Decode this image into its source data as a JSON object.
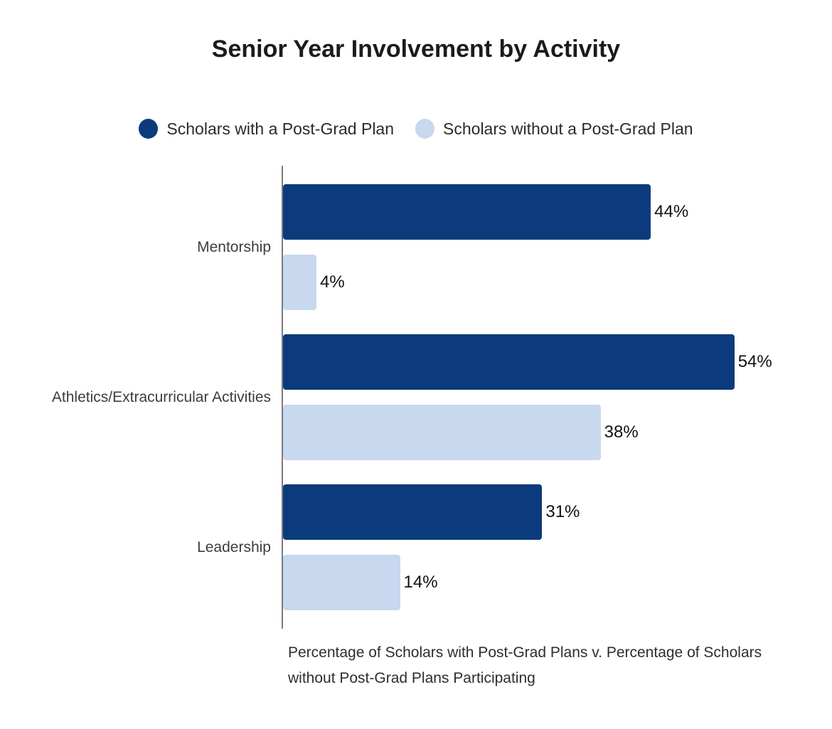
{
  "title": "Senior Year Involvement by Activity",
  "legend": [
    {
      "label": "Scholars with a Post-Grad Plan",
      "color": "#0b3b7c"
    },
    {
      "label": "Scholars without a Post-Grad Plan",
      "color": "#c7d8ef"
    }
  ],
  "caption_line1": "Percentage of Scholars with Post-Grad Plans v. Percentage of Scholars",
  "caption_line2": "without Post-Grad Plans Participating",
  "colors": {
    "bar_with_plan": "#0b3b7c",
    "bar_without_plan": "#c7d8ef",
    "axis_line": "#7a7a7a",
    "title_text": "#1b1b1b"
  },
  "chart_data": {
    "type": "bar",
    "orientation": "horizontal",
    "title": "Senior Year Involvement by Activity",
    "xlabel": "",
    "ylabel": "",
    "categories": [
      "Mentorship",
      "Athletics/Extracurricular Activities",
      "Leadership"
    ],
    "series": [
      {
        "name": "Scholars with a Post-Grad Plan",
        "color": "#0b3b7c",
        "values": [
          44,
          54,
          31
        ],
        "labels": [
          "44%",
          "54%",
          "31%"
        ]
      },
      {
        "name": "Scholars without a Post-Grad Plan",
        "color": "#c7d8ef",
        "values": [
          4,
          38,
          14
        ],
        "labels": [
          "4%",
          "38%",
          "14%"
        ]
      }
    ],
    "xlim": [
      0,
      65
    ],
    "grid": false,
    "legend_position": "top",
    "value_labels": "outside-end",
    "footnote": "Percentage of Scholars with Post-Grad Plans v. Percentage of Scholars without Post-Grad Plans Participating"
  }
}
